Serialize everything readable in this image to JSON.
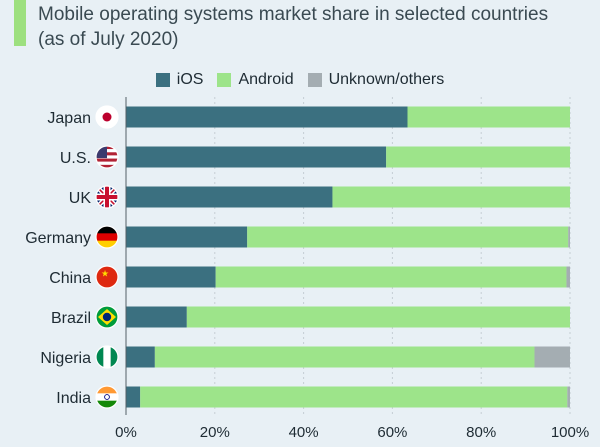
{
  "title": "Mobile operating systems market share in selected countries (as of July 2020)",
  "colors": {
    "background": "#e8f0f5",
    "accent": "#9de07f",
    "ios": "#3b7080",
    "android": "#9de48a",
    "others": "#a4adb2",
    "grid": "#c5ced4",
    "text": "#1e2b33"
  },
  "legend": [
    {
      "label": "iOS",
      "color_key": "ios"
    },
    {
      "label": "Android",
      "color_key": "android"
    },
    {
      "label": "Unknown/others",
      "color_key": "others"
    }
  ],
  "chart_data": {
    "type": "bar",
    "orientation": "horizontal",
    "stacked": true,
    "categories": [
      "Japan",
      "U.S.",
      "UK",
      "Germany",
      "China",
      "Brazil",
      "Nigeria",
      "India"
    ],
    "flag_icons": [
      "flag-japan-icon",
      "flag-us-icon",
      "flag-uk-icon",
      "flag-germany-icon",
      "flag-china-icon",
      "flag-brazil-icon",
      "flag-nigeria-icon",
      "flag-india-icon"
    ],
    "series": [
      {
        "name": "iOS",
        "values": [
          63.4,
          58.6,
          46.5,
          27.3,
          20.2,
          13.7,
          6.5,
          3.2
        ]
      },
      {
        "name": "Android",
        "values": [
          36.6,
          41.4,
          53.5,
          72.3,
          79.0,
          86.3,
          85.5,
          96.2
        ]
      },
      {
        "name": "Unknown/others",
        "values": [
          0,
          0,
          0,
          0.4,
          0.8,
          0,
          8.0,
          0.6
        ]
      }
    ],
    "xlim": [
      0,
      100
    ],
    "xticks": [
      "0%",
      "20%",
      "40%",
      "60%",
      "80%",
      "100%"
    ],
    "grid": true,
    "legend_position": "top-center"
  }
}
